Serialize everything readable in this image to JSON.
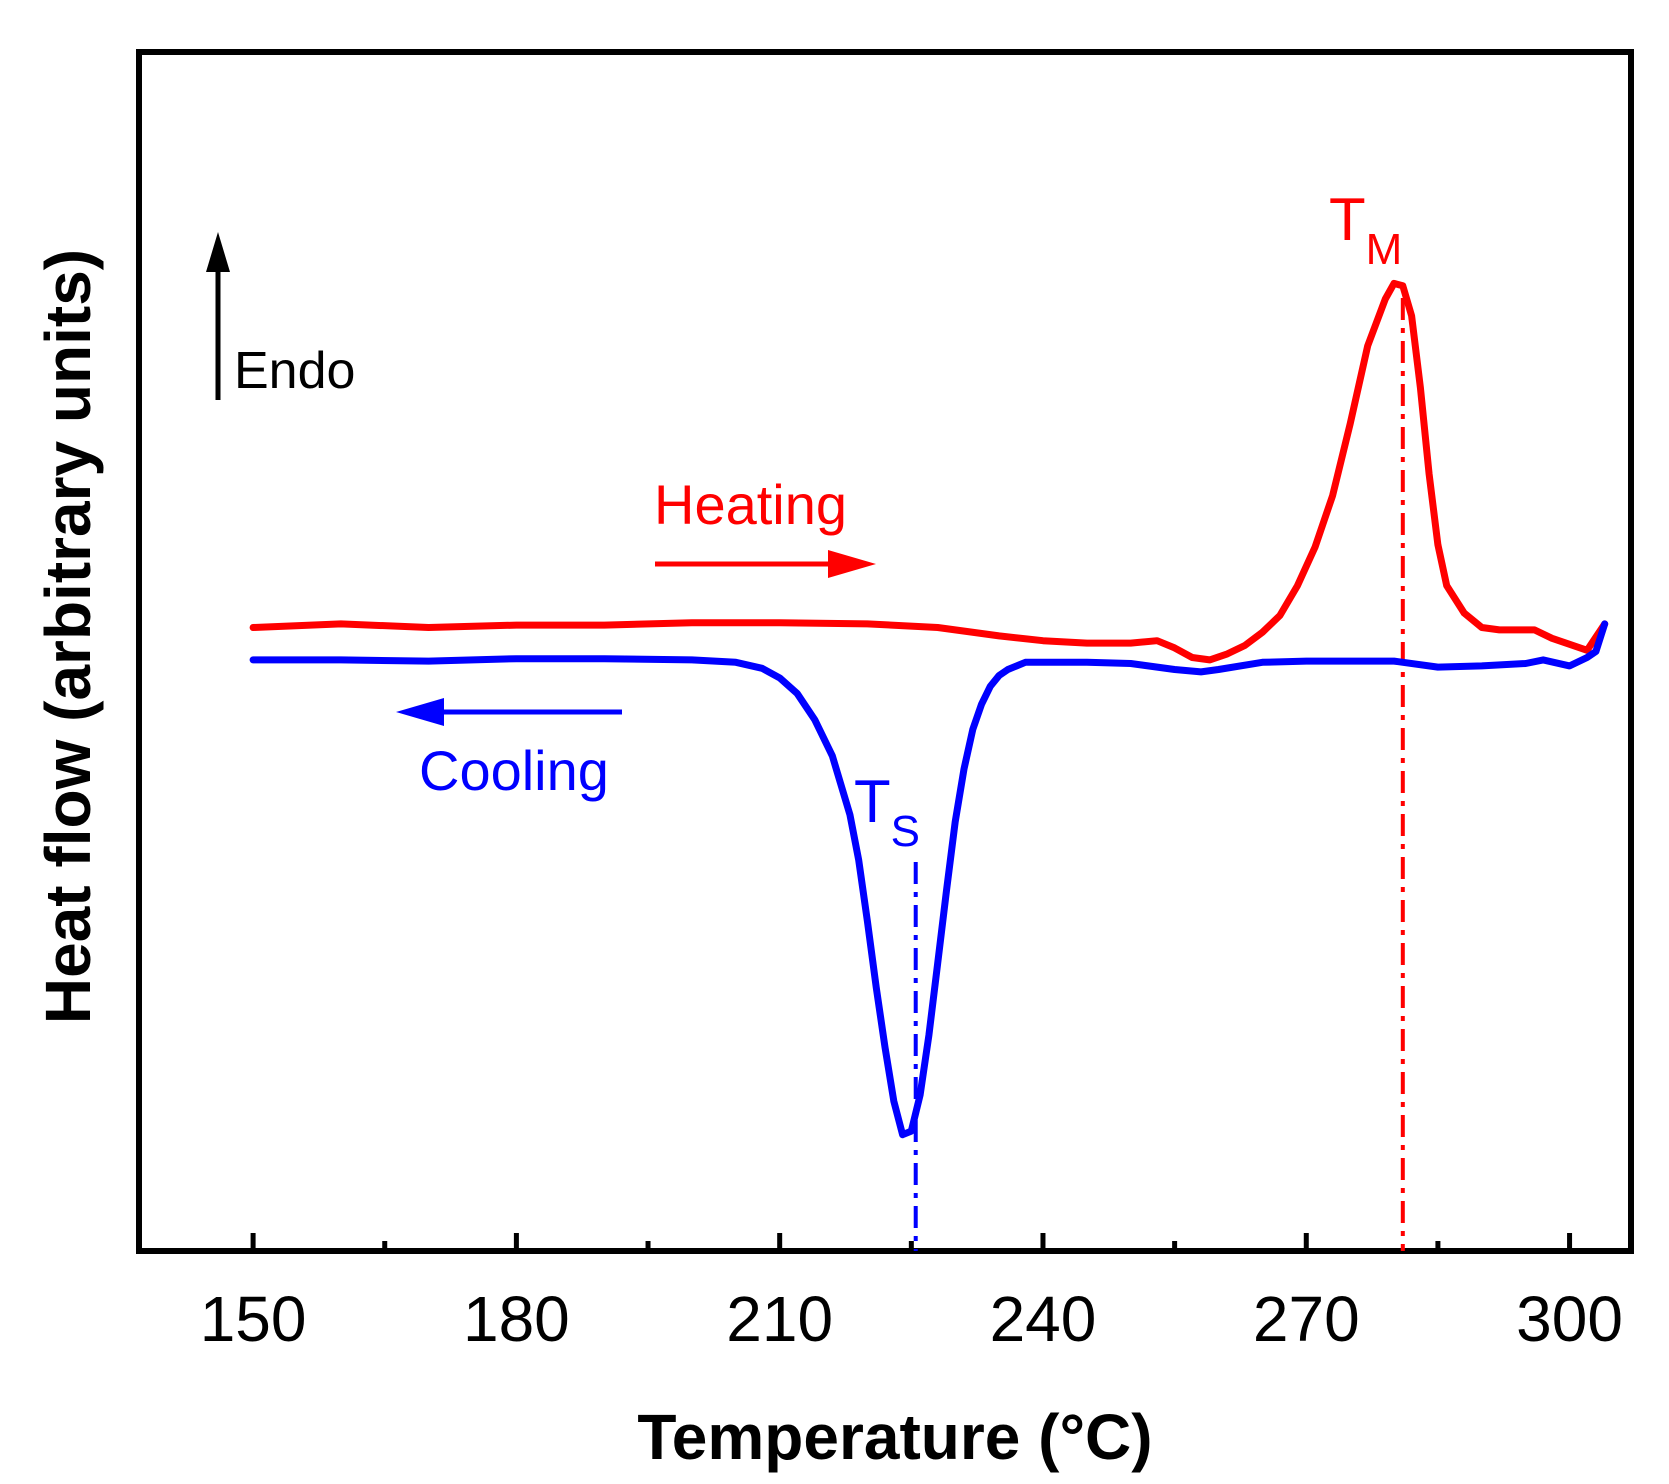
{
  "chart_data": {
    "type": "line",
    "title": "",
    "xlabel": "Temperature (°C)",
    "ylabel": "Heat flow (arbitrary units)",
    "xlim": [
      137,
      307
    ],
    "ylim": [
      0,
      100
    ],
    "yticks_shown": false,
    "xticks": [
      150,
      180,
      210,
      240,
      270,
      300
    ],
    "xtick_labels": [
      "150",
      "180",
      "210",
      "240",
      "270",
      "300"
    ],
    "minor_xticks": [
      165,
      195,
      225,
      255,
      285
    ],
    "grid": false,
    "legend": "none",
    "colors": {
      "heating": "#ff0000",
      "cooling": "#0000ff",
      "axes": "#000000"
    },
    "series": [
      {
        "name": "Heating",
        "color": "#ff0000",
        "x": [
          150,
          160,
          170,
          180,
          190,
          200,
          210,
          220,
          228,
          235,
          240,
          245,
          250,
          253,
          255,
          257,
          259,
          261,
          263,
          265,
          267,
          269,
          271,
          273,
          275,
          277,
          279,
          280,
          281,
          282,
          283,
          284,
          285,
          286,
          288,
          290,
          292,
          294,
          296,
          298,
          300,
          302,
          304
        ],
        "y": [
          52.0,
          52.3,
          52.0,
          52.2,
          52.2,
          52.4,
          52.4,
          52.3,
          52.0,
          51.3,
          50.9,
          50.7,
          50.7,
          50.9,
          50.3,
          49.5,
          49.3,
          49.8,
          50.5,
          51.6,
          53.0,
          55.5,
          58.7,
          63.0,
          69.0,
          75.5,
          79.4,
          80.7,
          80.5,
          78.0,
          72.0,
          64.8,
          58.9,
          55.5,
          53.2,
          52.0,
          51.8,
          51.8,
          51.8,
          51.1,
          50.6,
          50.1,
          52.3
        ]
      },
      {
        "name": "Cooling",
        "color": "#0000ff",
        "x": [
          150,
          160,
          170,
          180,
          190,
          200,
          205,
          208,
          210,
          212,
          214,
          216,
          218,
          219,
          220,
          221,
          222,
          223,
          224,
          225,
          226,
          227,
          228,
          229,
          230,
          231,
          232,
          233,
          234,
          235,
          236,
          238,
          240,
          245,
          250,
          255,
          258,
          260,
          265,
          270,
          275,
          280,
          285,
          290,
          295,
          297,
          300,
          302,
          303,
          304
        ],
        "y": [
          49.3,
          49.3,
          49.2,
          49.4,
          49.4,
          49.3,
          49.1,
          48.6,
          47.8,
          46.5,
          44.3,
          41.3,
          36.4,
          32.6,
          27.5,
          22.0,
          17.0,
          12.5,
          9.7,
          10.0,
          13.0,
          18.0,
          24.0,
          30.0,
          35.8,
          40.2,
          43.5,
          45.6,
          47.1,
          48.0,
          48.5,
          49.1,
          49.1,
          49.1,
          49.0,
          48.5,
          48.3,
          48.5,
          49.1,
          49.2,
          49.2,
          49.2,
          48.7,
          48.8,
          49.0,
          49.3,
          48.8,
          49.5,
          50.0,
          52.3
        ]
      }
    ],
    "annotations": {
      "endo": {
        "label": "Endo",
        "direction": "up"
      },
      "heating_label": "Heating",
      "cooling_label": "Cooling",
      "ts": {
        "main": "T",
        "sub": "S",
        "x": 225.5
      },
      "tm": {
        "main": "T",
        "sub": "M",
        "x": 281
      }
    }
  }
}
